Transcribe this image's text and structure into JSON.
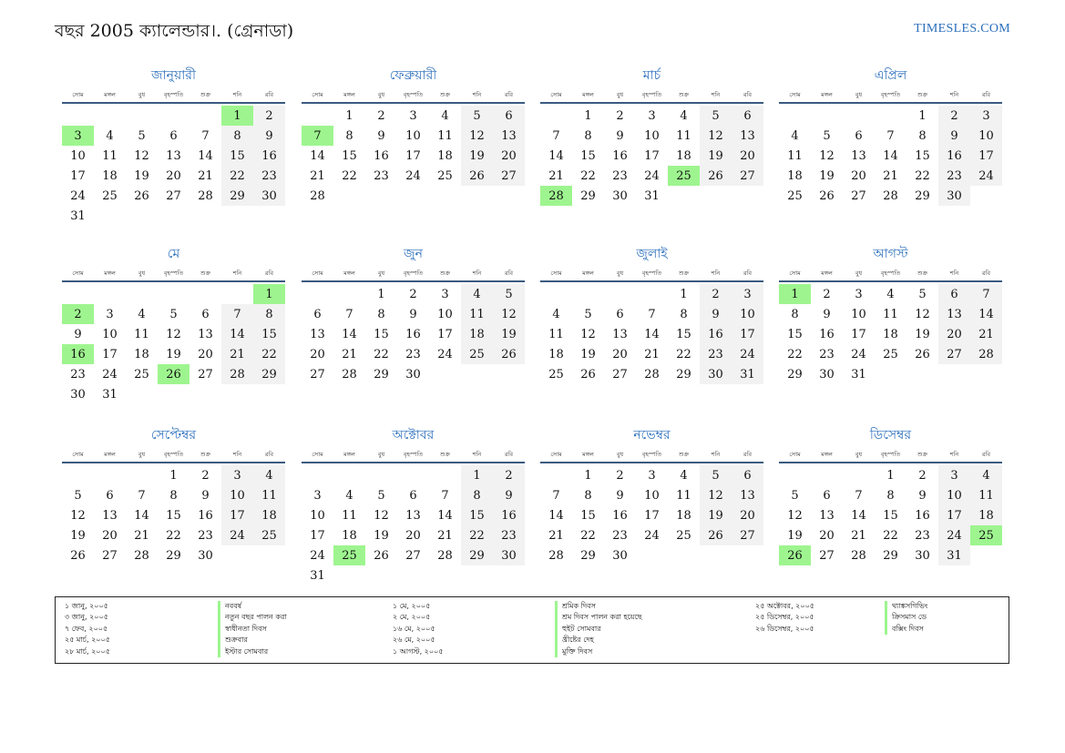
{
  "header": {
    "title": "বছর 2005 ক্যালেন্ডার।. (গ্রেনাডা)",
    "brand": "TIMESLES.COM"
  },
  "weekdays": [
    "সোম",
    "মঙ্গল",
    "বুধ",
    "বৃহস্পতি",
    "শুক্র",
    "শনি",
    "রবি"
  ],
  "months": [
    {
      "name": "জানুয়ারী",
      "offset": 5,
      "days": 31,
      "holidays": [
        1,
        3
      ]
    },
    {
      "name": "ফেব্রুয়ারী",
      "offset": 1,
      "days": 28,
      "holidays": [
        7
      ]
    },
    {
      "name": "মার্চ",
      "offset": 1,
      "days": 31,
      "holidays": [
        25,
        28
      ]
    },
    {
      "name": "এপ্রিল",
      "offset": 4,
      "days": 30,
      "holidays": []
    },
    {
      "name": "মে",
      "offset": 6,
      "days": 31,
      "holidays": [
        1,
        2,
        16,
        26
      ]
    },
    {
      "name": "জুন",
      "offset": 2,
      "days": 30,
      "holidays": []
    },
    {
      "name": "জুলাই",
      "offset": 4,
      "days": 31,
      "holidays": []
    },
    {
      "name": "আগস্ট",
      "offset": 0,
      "days": 31,
      "holidays": [
        1
      ]
    },
    {
      "name": "সেপ্টেম্বর",
      "offset": 3,
      "days": 30,
      "holidays": []
    },
    {
      "name": "অক্টোবর",
      "offset": 5,
      "days": 31,
      "holidays": [
        25
      ]
    },
    {
      "name": "নভেম্বর",
      "offset": 1,
      "days": 30,
      "holidays": []
    },
    {
      "name": "ডিসেম্বর",
      "offset": 3,
      "days": 31,
      "holidays": [
        25,
        26
      ]
    }
  ],
  "legend": [
    [
      {
        "date": "১ জানু, ২০০৫",
        "name": "নববর্ষ"
      },
      {
        "date": "৩ জানু, ২০০৫",
        "name": "নতুন বছর পালন করা"
      },
      {
        "date": "৭ ফেব, ২০০৫",
        "name": "স্বাধীনতা দিবস"
      },
      {
        "date": "২৫ মার্চ, ২০০৫",
        "name": "শুক্রবার"
      },
      {
        "date": "২৮ মার্চ, ২০০৫",
        "name": "ইস্টার সোমবার"
      }
    ],
    [
      {
        "date": "১ মে, ২০০৫",
        "name": "শ্রমিক দিবস"
      },
      {
        "date": "২ মে, ২০০৫",
        "name": "শ্রম দিবস পালন করা হয়েছে"
      },
      {
        "date": "১৬ মে, ২০০৫",
        "name": "হুইট সোমবার"
      },
      {
        "date": "২৬ মে, ২০০৫",
        "name": "খ্রীষ্টের দেহ"
      },
      {
        "date": "১ আগস্ট, ২০০৫",
        "name": "মুক্তি দিবস"
      }
    ],
    [
      {
        "date": "২৫ অক্টোবর, ২০০৫",
        "name": "থ্যাঙ্কসগিভিং"
      },
      {
        "date": "২৫ ডিসেম্বর, ২০০৫",
        "name": "ক্রিসমাস ডে"
      },
      {
        "date": "২৬ ডিসেম্বর, ২০০৫",
        "name": "বক্সিং দিবস"
      }
    ]
  ]
}
